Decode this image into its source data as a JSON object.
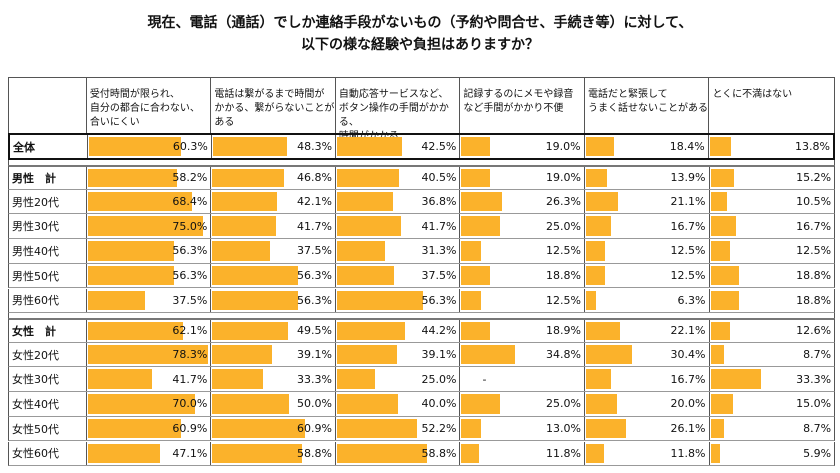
{
  "title_line1": "現在、電話（通話）でしか連絡手段がないもの（予約や問合せ、手続き等）に対して、",
  "title_line2": "以下の様な経験や負担はありますか？",
  "chart_data": {
    "type": "table",
    "scale_max": 80,
    "columns": [
      [
        "受付時間が限られ、",
        "自分の都合に合わない、",
        "合いにくい"
      ],
      [
        "電話は繋がるまで時間が",
        "かかる、繋がらないことが",
        "ある"
      ],
      [
        "自動応答サービスなど、",
        "ボタン操作の手間がかかる、",
        "時間がかかる"
      ],
      [
        "記録するのにメモや録音",
        "など手間がかかり不便"
      ],
      [
        "電話だと緊張して",
        "うまく話せないことがある"
      ],
      [
        "とくに不満はない"
      ]
    ],
    "rows": [
      {
        "label": "全体",
        "bold": true,
        "group": 0,
        "values": [
          60.3,
          48.3,
          42.5,
          19.0,
          18.4,
          13.8
        ],
        "labels": [
          "60.3%",
          "48.3%",
          "42.5%",
          "19.0%",
          "18.4%",
          "13.8%"
        ]
      },
      {
        "label": "男性　計",
        "bold": true,
        "group": 1,
        "values": [
          58.2,
          46.8,
          40.5,
          19.0,
          13.9,
          15.2
        ],
        "labels": [
          "58.2%",
          "46.8%",
          "40.5%",
          "19.0%",
          "13.9%",
          "15.2%"
        ]
      },
      {
        "label": "男性20代",
        "group": 1,
        "values": [
          68.4,
          42.1,
          36.8,
          26.3,
          21.1,
          10.5
        ],
        "labels": [
          "68.4%",
          "42.1%",
          "36.8%",
          "26.3%",
          "21.1%",
          "10.5%"
        ]
      },
      {
        "label": "男性30代",
        "group": 1,
        "values": [
          75.0,
          41.7,
          41.7,
          25.0,
          16.7,
          16.7
        ],
        "labels": [
          "75.0%",
          "41.7%",
          "41.7%",
          "25.0%",
          "16.7%",
          "16.7%"
        ]
      },
      {
        "label": "男性40代",
        "group": 1,
        "values": [
          56.3,
          37.5,
          31.3,
          12.5,
          12.5,
          12.5
        ],
        "labels": [
          "56.3%",
          "37.5%",
          "31.3%",
          "12.5%",
          "12.5%",
          "12.5%"
        ]
      },
      {
        "label": "男性50代",
        "group": 1,
        "values": [
          56.3,
          56.3,
          37.5,
          18.8,
          12.5,
          18.8
        ],
        "labels": [
          "56.3%",
          "56.3%",
          "37.5%",
          "18.8%",
          "12.5%",
          "18.8%"
        ]
      },
      {
        "label": "男性60代",
        "group": 1,
        "values": [
          37.5,
          56.3,
          56.3,
          12.5,
          6.3,
          18.8
        ],
        "labels": [
          "37.5%",
          "56.3%",
          "56.3%",
          "12.5%",
          "6.3%",
          "18.8%"
        ]
      },
      {
        "label": "女性　計",
        "bold": true,
        "group": 2,
        "values": [
          62.1,
          49.5,
          44.2,
          18.9,
          22.1,
          12.6
        ],
        "labels": [
          "62.1%",
          "49.5%",
          "44.2%",
          "18.9%",
          "22.1%",
          "12.6%"
        ]
      },
      {
        "label": "女性20代",
        "group": 2,
        "values": [
          78.3,
          39.1,
          39.1,
          34.8,
          30.4,
          8.7
        ],
        "labels": [
          "78.3%",
          "39.1%",
          "39.1%",
          "34.8%",
          "30.4%",
          "8.7%"
        ]
      },
      {
        "label": "女性30代",
        "group": 2,
        "values": [
          41.7,
          33.3,
          25.0,
          null,
          16.7,
          33.3
        ],
        "labels": [
          "41.7%",
          "33.3%",
          "25.0%",
          "-",
          "16.7%",
          "33.3%"
        ]
      },
      {
        "label": "女性40代",
        "group": 2,
        "values": [
          70.0,
          50.0,
          40.0,
          25.0,
          20.0,
          15.0
        ],
        "labels": [
          "70.0%",
          "50.0%",
          "40.0%",
          "25.0%",
          "20.0%",
          "15.0%"
        ]
      },
      {
        "label": "女性50代",
        "group": 2,
        "values": [
          60.9,
          60.9,
          52.2,
          13.0,
          26.1,
          8.7
        ],
        "labels": [
          "60.9%",
          "60.9%",
          "52.2%",
          "13.0%",
          "26.1%",
          "8.7%"
        ]
      },
      {
        "label": "女性60代",
        "group": 2,
        "values": [
          47.1,
          58.8,
          58.8,
          11.8,
          11.8,
          5.9
        ],
        "labels": [
          "47.1%",
          "58.8%",
          "58.8%",
          "11.8%",
          "11.8%",
          "5.9%"
        ]
      }
    ]
  },
  "colors": {
    "bar": "#FBB22B"
  }
}
